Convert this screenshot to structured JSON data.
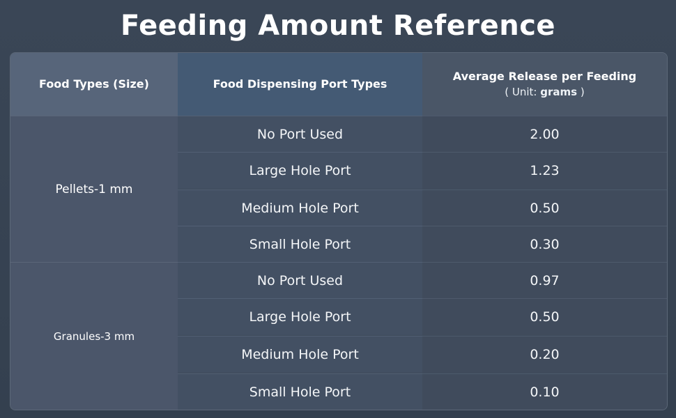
{
  "title": "Feeding Amount Reference",
  "headers": {
    "food_types": "Food Types (Size)",
    "port_types": "Food Dispensing Port Types",
    "avg_release": "Average Release per Feeding",
    "unit_prefix": "( Unit: ",
    "unit_value": "grams",
    "unit_suffix": " )"
  },
  "groups": [
    {
      "name": "Pellets-1 mm",
      "rows": [
        {
          "port": "No Port Used",
          "amount": "2.00"
        },
        {
          "port": "Large Hole Port",
          "amount": "1.23"
        },
        {
          "port": "Medium Hole Port",
          "amount": "0.50"
        },
        {
          "port": "Small Hole Port",
          "amount": "0.30"
        }
      ]
    },
    {
      "name": "Granules-3 mm",
      "rows": [
        {
          "port": "No Port Used",
          "amount": "0.97"
        },
        {
          "port": "Large Hole Port",
          "amount": "0.50"
        },
        {
          "port": "Medium Hole Port",
          "amount": "0.20"
        },
        {
          "port": "Small Hole Port",
          "amount": "0.10"
        }
      ]
    }
  ]
}
